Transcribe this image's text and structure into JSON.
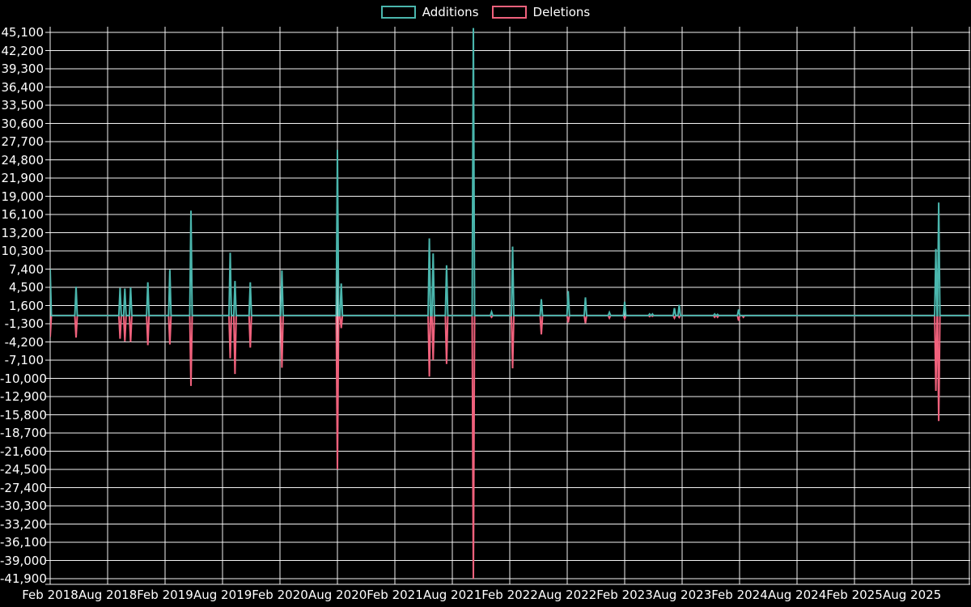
{
  "chart_data": {
    "type": "line",
    "title": "",
    "legend_position": "top-center",
    "grid": true,
    "background": "#000000",
    "axis_color": "#ffffff",
    "series": [
      {
        "name": "Additions",
        "color": "#4ab6ad"
      },
      {
        "name": "Deletions",
        "color": "#f0617c"
      }
    ],
    "y_axis": {
      "max": 45100,
      "min": -41900,
      "step": 2900,
      "tick_labels": [
        "45,100",
        "42,200",
        "39,300",
        "36,400",
        "33,500",
        "30,600",
        "27,700",
        "24,800",
        "21,900",
        "19,000",
        "16,100",
        "13,200",
        "10,300",
        "7,400",
        "4,500",
        "1,600",
        "-1,300",
        "-4,200",
        "-7,100",
        "-10,000",
        "-12,900",
        "-15,800",
        "-18,700",
        "-21,600",
        "-24,500",
        "-27,400",
        "-30,300",
        "-33,200",
        "-36,100",
        "-39,000",
        "-41,900"
      ]
    },
    "x_axis": {
      "start_label": "Feb 2018",
      "months_per_tick": 6,
      "tick_labels": [
        "Feb 2018",
        "Aug 2018",
        "Feb 2019",
        "Aug 2019",
        "Feb 2020",
        "Aug 2020",
        "Feb 2021",
        "Aug 2021",
        "Feb 2022",
        "Aug 2022",
        "Feb 2023",
        "Aug 2023",
        "Feb 2024",
        "Aug 2024",
        "Feb 2025",
        "Aug 2025"
      ],
      "domain_months": [
        0,
        96
      ]
    },
    "baseline_value": 0,
    "weeks_note": "m = months after Feb 2018; additions positive, deletions negative",
    "weeks": [
      {
        "m": 0.0,
        "additions": 7400,
        "deletions": -3400
      },
      {
        "m": 2.7,
        "additions": 4600,
        "deletions": -3500
      },
      {
        "m": 7.3,
        "additions": 4400,
        "deletions": -3700
      },
      {
        "m": 7.8,
        "additions": 4300,
        "deletions": -4100
      },
      {
        "m": 8.4,
        "additions": 4500,
        "deletions": -4200
      },
      {
        "m": 10.2,
        "additions": 5300,
        "deletions": -4700
      },
      {
        "m": 12.5,
        "additions": 7300,
        "deletions": -4600
      },
      {
        "m": 14.7,
        "additions": 16700,
        "deletions": -11200
      },
      {
        "m": 18.8,
        "additions": 10000,
        "deletions": -6800
      },
      {
        "m": 19.3,
        "additions": 5500,
        "deletions": -9300
      },
      {
        "m": 20.9,
        "additions": 5300,
        "deletions": -5100
      },
      {
        "m": 24.2,
        "additions": 7200,
        "deletions": -8300
      },
      {
        "m": 30.0,
        "additions": 26400,
        "deletions": -24500
      },
      {
        "m": 30.4,
        "additions": 5100,
        "deletions": -2000
      },
      {
        "m": 39.6,
        "additions": 12300,
        "deletions": -9700
      },
      {
        "m": 40.0,
        "additions": 9900,
        "deletions": -7100
      },
      {
        "m": 41.4,
        "additions": 8000,
        "deletions": -7700
      },
      {
        "m": 44.2,
        "additions": 45800,
        "deletions": -41900
      },
      {
        "m": 46.1,
        "additions": 600,
        "deletions": -250
      },
      {
        "m": 48.3,
        "additions": 11000,
        "deletions": -8400
      },
      {
        "m": 51.3,
        "additions": 2600,
        "deletions": -3000
      },
      {
        "m": 54.1,
        "additions": 3900,
        "deletions": -1100
      },
      {
        "m": 55.9,
        "additions": 2900,
        "deletions": -1200
      },
      {
        "m": 58.4,
        "additions": 500,
        "deletions": -400
      },
      {
        "m": 60.0,
        "additions": 2200,
        "deletions": -500
      },
      {
        "m": 62.6,
        "additions": 250,
        "deletions": -150
      },
      {
        "m": 62.9,
        "additions": 250,
        "deletions": -100
      },
      {
        "m": 65.2,
        "additions": 1200,
        "deletions": -400
      },
      {
        "m": 65.7,
        "additions": 1700,
        "deletions": -300
      },
      {
        "m": 69.4,
        "additions": 250,
        "deletions": -250
      },
      {
        "m": 69.7,
        "additions": 200,
        "deletions": -250
      },
      {
        "m": 71.9,
        "additions": 950,
        "deletions": -800
      },
      {
        "m": 72.4,
        "additions": 0,
        "deletions": -250
      },
      {
        "m": 92.5,
        "additions": 10600,
        "deletions": -12000
      },
      {
        "m": 92.8,
        "additions": 18000,
        "deletions": -16800
      }
    ]
  }
}
